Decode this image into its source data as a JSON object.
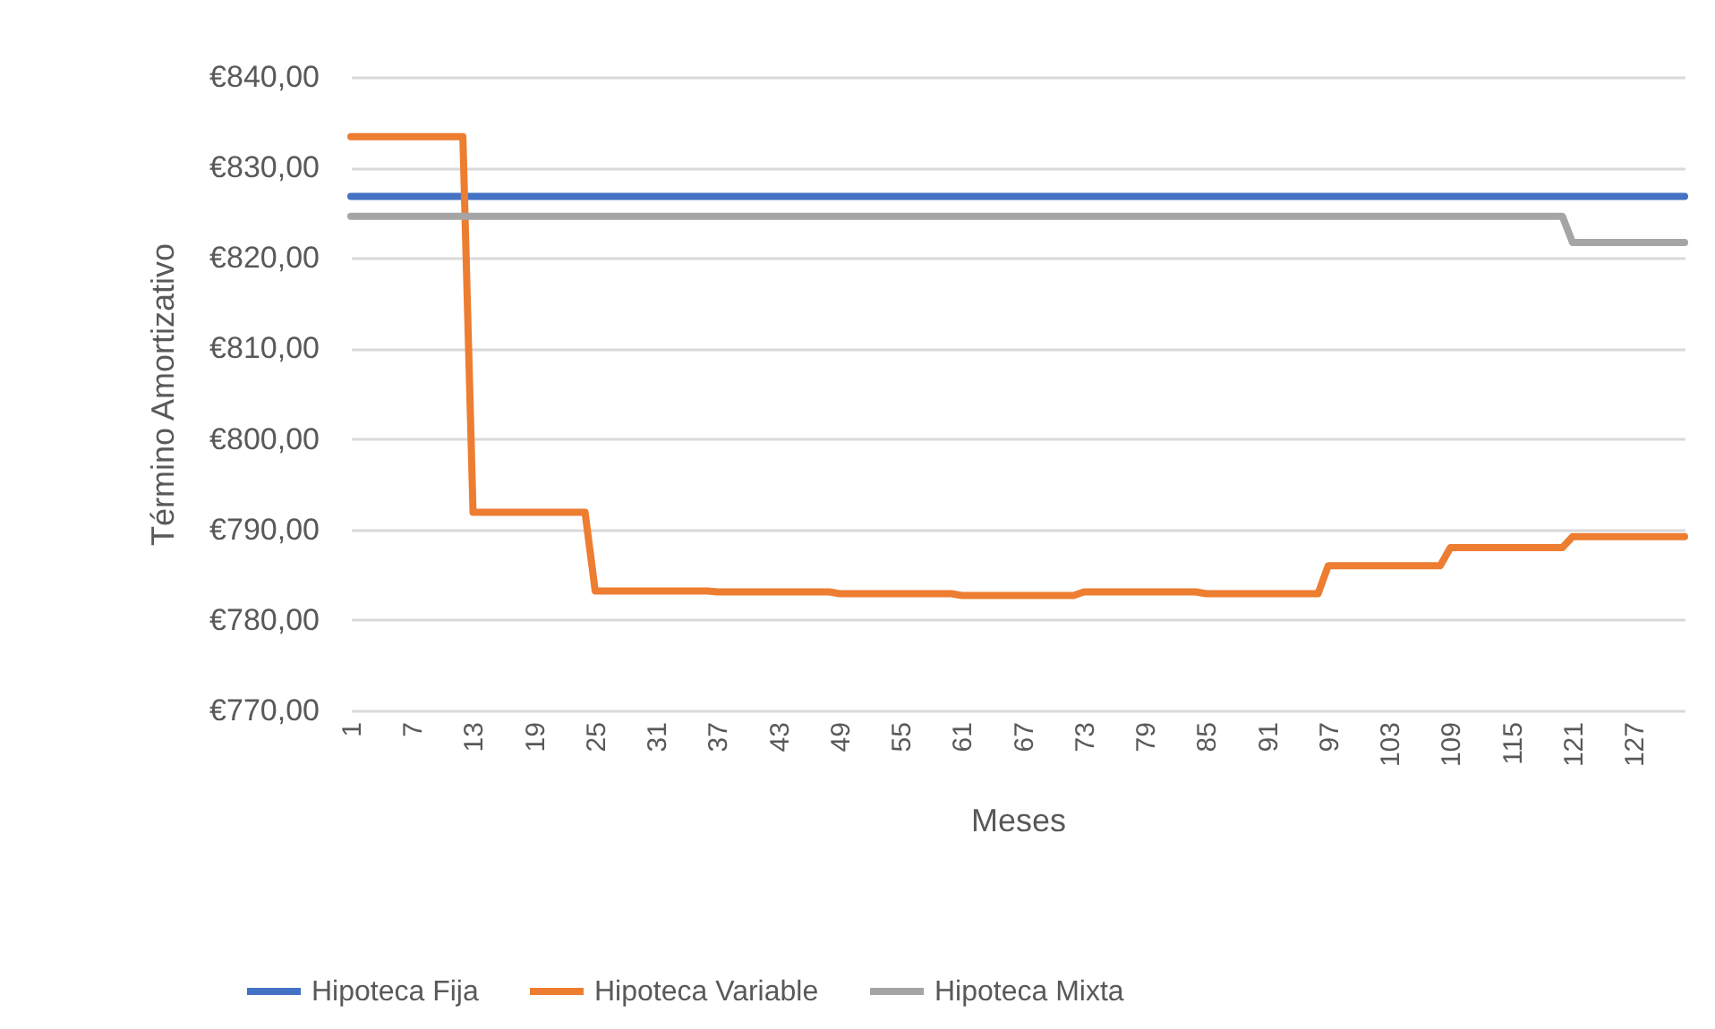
{
  "chart_data": {
    "type": "line",
    "xlabel": "Meses",
    "ylabel": "Término Amortizativo",
    "xlim": [
      1,
      132
    ],
    "xticks": [
      1,
      7,
      13,
      19,
      25,
      31,
      37,
      43,
      49,
      55,
      61,
      67,
      73,
      79,
      85,
      91,
      97,
      103,
      109,
      115,
      121,
      127
    ],
    "ylim": [
      770,
      840
    ],
    "yticks": [
      {
        "value": 770,
        "label": "€770,00"
      },
      {
        "value": 780,
        "label": "€780,00"
      },
      {
        "value": 790,
        "label": "€790,00"
      },
      {
        "value": 800,
        "label": "€800,00"
      },
      {
        "value": 810,
        "label": "€810,00"
      },
      {
        "value": 820,
        "label": "€820,00"
      },
      {
        "value": 830,
        "label": "€830,00"
      },
      {
        "value": 840,
        "label": "€840,00"
      }
    ],
    "grid": "y",
    "legend": "bottom",
    "series": [
      {
        "name": "Hipoteca Fija",
        "color": "#4472c4",
        "x": [
          1,
          132
        ],
        "values": [
          826.8,
          826.8
        ]
      },
      {
        "name": "Hipoteca Variable",
        "color": "#ed7d31",
        "x": [
          1,
          12,
          13,
          24,
          25,
          36,
          37,
          48,
          49,
          60,
          61,
          72,
          73,
          84,
          85,
          96,
          97,
          108,
          109,
          120,
          121,
          132
        ],
        "values": [
          833.4,
          833.4,
          791.9,
          791.9,
          783.2,
          783.2,
          783.1,
          783.1,
          782.9,
          782.9,
          782.7,
          782.7,
          783.1,
          783.1,
          782.9,
          782.9,
          786.0,
          786.0,
          788.0,
          788.0,
          789.2,
          789.2
        ]
      },
      {
        "name": "Hipoteca Mixta",
        "color": "#a5a5a5",
        "x": [
          1,
          120,
          121,
          132
        ],
        "values": [
          824.6,
          824.6,
          821.7,
          821.7
        ]
      }
    ]
  }
}
